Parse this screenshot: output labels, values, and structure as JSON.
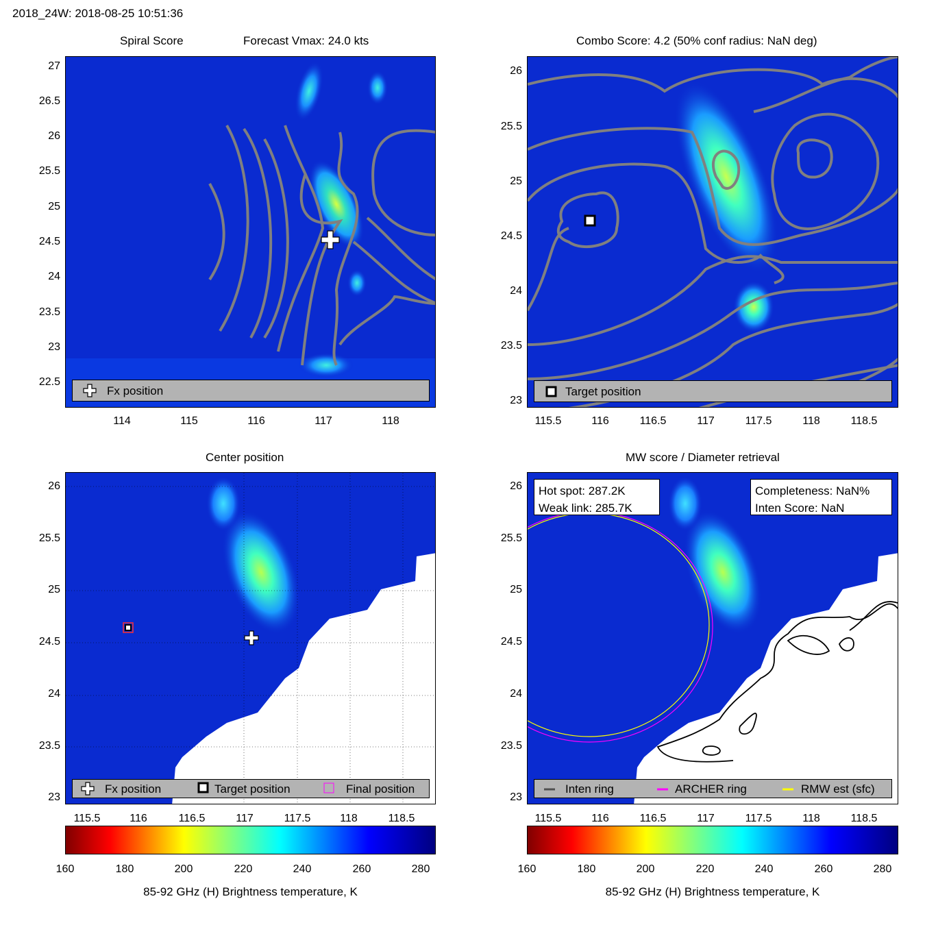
{
  "suptitle": "2018_24W: 2018-08-25 10:51:36",
  "colors": {
    "background_blue": "#0a2bd0",
    "legend_gray": "#b3b3b3",
    "contour_gray": "#808080",
    "archer_ring": "#ff00ff",
    "rmw_ring": "#ffff00"
  },
  "panels": {
    "spiral": {
      "title_left": "Spiral Score",
      "title_right": "Forecast Vmax: 24.0 kts",
      "yticks": [
        "27",
        "26.5",
        "26",
        "25.5",
        "25",
        "24.5",
        "24",
        "23.5",
        "23",
        "22.5"
      ],
      "xticks": [
        "114",
        "115",
        "116",
        "117",
        "118"
      ],
      "legend": {
        "fx_label": "Fx position"
      }
    },
    "combo": {
      "title": "Combo Score: 4.2  (50% conf radius: NaN deg)",
      "yticks": [
        "26",
        "25.5",
        "25",
        "24.5",
        "24",
        "23.5",
        "23"
      ],
      "xticks": [
        "115.5",
        "116",
        "116.5",
        "117",
        "117.5",
        "118",
        "118.5"
      ],
      "legend": {
        "target_label": "Target position"
      }
    },
    "center": {
      "title": "Center position",
      "yticks": [
        "26",
        "25.5",
        "25",
        "24.5",
        "24",
        "23.5",
        "23"
      ],
      "xticks": [
        "115.5",
        "116",
        "116.5",
        "117",
        "117.5",
        "118",
        "118.5"
      ],
      "legend": {
        "fx_label": "Fx position",
        "target_label": "Target position",
        "final_label": "Final position"
      }
    },
    "mw": {
      "title": "MW score / Diameter retrieval",
      "yticks": [
        "26",
        "25.5",
        "25",
        "24.5",
        "24",
        "23.5",
        "23"
      ],
      "xticks": [
        "115.5",
        "116",
        "116.5",
        "117",
        "117.5",
        "118",
        "118.5"
      ],
      "hot_spot": "Hot spot: 287.2K",
      "weak_link": "Weak link: 285.7K",
      "completeness": "Completeness: NaN%",
      "inten_score": "Inten Score: NaN",
      "legend": {
        "inten_label": "Inten ring",
        "archer_label": "ARCHER ring",
        "rmw_label": "RMW est (sfc)"
      }
    }
  },
  "colorbar": {
    "ticks": [
      "160",
      "180",
      "200",
      "220",
      "240",
      "260",
      "280"
    ],
    "label": "85-92 GHz (H) Brightness temperature, K"
  },
  "chart_data": [
    {
      "type": "heatmap",
      "title": "Spiral Score",
      "subtitle": "Forecast Vmax: 24.0 kts",
      "xlim": [
        113.2,
        118.7
      ],
      "ylim": [
        22.2,
        27.2
      ],
      "fx_position": {
        "lon": 117.05,
        "lat": 24.55
      },
      "forecast_vmax_kts": 24.0
    },
    {
      "type": "heatmap",
      "title": "Combo Score: 4.2  (50% conf radius: NaN deg)",
      "xlim": [
        115.3,
        118.8
      ],
      "ylim": [
        22.95,
        26.2
      ],
      "combo_score": 4.2,
      "target_position": {
        "lon": 115.9,
        "lat": 24.65
      }
    },
    {
      "type": "heatmap",
      "title": "Center position",
      "xlim": [
        115.3,
        118.8
      ],
      "ylim": [
        22.95,
        26.2
      ],
      "fx_position": {
        "lon": 117.05,
        "lat": 24.55
      },
      "target_position": {
        "lon": 115.9,
        "lat": 24.65
      },
      "colorbar_range_K": [
        160,
        285
      ]
    },
    {
      "type": "heatmap",
      "title": "MW score / Diameter retrieval",
      "xlim": [
        115.3,
        118.8
      ],
      "ylim": [
        22.95,
        26.2
      ],
      "hot_spot_K": 287.2,
      "weak_link_K": 285.7,
      "colorbar_range_K": [
        160,
        285
      ]
    }
  ]
}
